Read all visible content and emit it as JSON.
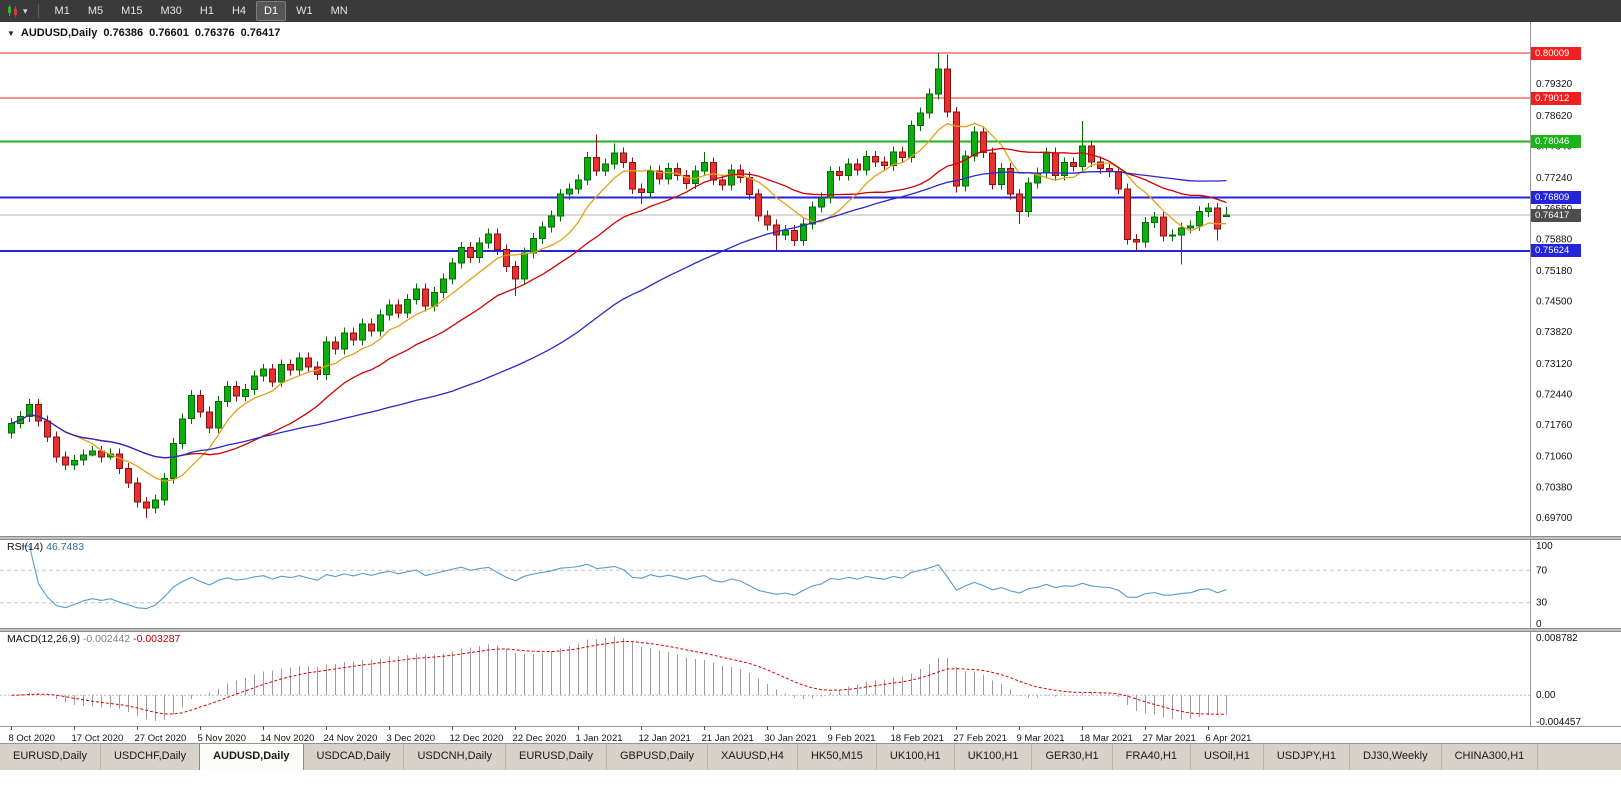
{
  "toolbar": {
    "timeframes": [
      "M1",
      "M5",
      "M15",
      "M30",
      "H1",
      "H4",
      "D1",
      "W1",
      "MN"
    ],
    "active_timeframe": "D1",
    "caret": "▾"
  },
  "chart": {
    "header": {
      "collapse_icon": "▼",
      "symbol": "AUDUSD,Daily",
      "open": "0.76386",
      "high": "0.76601",
      "low": "0.76376",
      "close": "0.76417"
    }
  },
  "chart_data": {
    "type": "candlestick",
    "symbol": "AUDUSD",
    "period": "Daily",
    "price_range": {
      "max": 0.807,
      "min": 0.693
    },
    "colors": {
      "up_fill": "#0fae10",
      "up_border": "#046b04",
      "down_fill": "#e63131",
      "down_border": "#8d0f0f",
      "rsi": "#559bd4",
      "macd_bar": "#9c9c9c",
      "macd_signal": "#e00000"
    },
    "candles": [
      [
        0.7158,
        0.7192,
        0.7146,
        0.718
      ],
      [
        0.718,
        0.7207,
        0.7168,
        0.7195
      ],
      [
        0.7195,
        0.7234,
        0.7183,
        0.7222
      ],
      [
        0.7222,
        0.7234,
        0.7173,
        0.7185
      ],
      [
        0.7185,
        0.7197,
        0.7138,
        0.715
      ],
      [
        0.715,
        0.7162,
        0.7093,
        0.7105
      ],
      [
        0.7105,
        0.7117,
        0.7076,
        0.7088
      ],
      [
        0.7088,
        0.711,
        0.7076,
        0.7098
      ],
      [
        0.7098,
        0.7122,
        0.7086,
        0.711
      ],
      [
        0.711,
        0.713,
        0.7106,
        0.7118
      ],
      [
        0.7118,
        0.713,
        0.7093,
        0.7105
      ],
      [
        0.7105,
        0.7124,
        0.71,
        0.7112
      ],
      [
        0.7112,
        0.7124,
        0.7068,
        0.708
      ],
      [
        0.708,
        0.7092,
        0.7036,
        0.7048
      ],
      [
        0.7048,
        0.706,
        0.6993,
        0.7005
      ],
      [
        0.7005,
        0.7017,
        0.697,
        0.6992
      ],
      [
        0.6992,
        0.7022,
        0.698,
        0.701
      ],
      [
        0.701,
        0.707,
        0.6998,
        0.7058
      ],
      [
        0.7058,
        0.7147,
        0.7046,
        0.7135
      ],
      [
        0.7135,
        0.7202,
        0.7123,
        0.719
      ],
      [
        0.719,
        0.7254,
        0.7178,
        0.7242
      ],
      [
        0.7242,
        0.7254,
        0.7193,
        0.7205
      ],
      [
        0.7205,
        0.7217,
        0.7158,
        0.717
      ],
      [
        0.717,
        0.724,
        0.7158,
        0.7228
      ],
      [
        0.7228,
        0.7274,
        0.7216,
        0.7262
      ],
      [
        0.7262,
        0.7274,
        0.7228,
        0.724
      ],
      [
        0.724,
        0.7267,
        0.7228,
        0.7255
      ],
      [
        0.7255,
        0.7297,
        0.7243,
        0.7285
      ],
      [
        0.7285,
        0.7312,
        0.7273,
        0.73
      ],
      [
        0.73,
        0.7312,
        0.726,
        0.7272
      ],
      [
        0.7272,
        0.7322,
        0.726,
        0.731
      ],
      [
        0.731,
        0.7322,
        0.7286,
        0.7298
      ],
      [
        0.7298,
        0.7337,
        0.7286,
        0.7325
      ],
      [
        0.7325,
        0.7337,
        0.7293,
        0.7305
      ],
      [
        0.7305,
        0.7317,
        0.7276,
        0.7288
      ],
      [
        0.7288,
        0.7372,
        0.7276,
        0.736
      ],
      [
        0.736,
        0.7372,
        0.7333,
        0.7345
      ],
      [
        0.7345,
        0.7392,
        0.7333,
        0.738
      ],
      [
        0.738,
        0.7392,
        0.7353,
        0.7365
      ],
      [
        0.7365,
        0.7412,
        0.7353,
        0.74
      ],
      [
        0.74,
        0.7412,
        0.7373,
        0.7385
      ],
      [
        0.7385,
        0.7432,
        0.7373,
        0.742
      ],
      [
        0.742,
        0.7454,
        0.7408,
        0.7442
      ],
      [
        0.7442,
        0.7454,
        0.7413,
        0.7425
      ],
      [
        0.7425,
        0.7467,
        0.7413,
        0.7455
      ],
      [
        0.7455,
        0.749,
        0.7443,
        0.7478
      ],
      [
        0.7478,
        0.749,
        0.7428,
        0.744
      ],
      [
        0.744,
        0.7482,
        0.7428,
        0.747
      ],
      [
        0.747,
        0.7512,
        0.7458,
        0.75
      ],
      [
        0.75,
        0.7547,
        0.7488,
        0.7535
      ],
      [
        0.7535,
        0.7582,
        0.7523,
        0.757
      ],
      [
        0.757,
        0.7582,
        0.7536,
        0.7548
      ],
      [
        0.7548,
        0.7592,
        0.7536,
        0.758
      ],
      [
        0.758,
        0.7612,
        0.7568,
        0.76
      ],
      [
        0.76,
        0.7612,
        0.7553,
        0.7565
      ],
      [
        0.7565,
        0.7577,
        0.7516,
        0.7528
      ],
      [
        0.7528,
        0.754,
        0.7462,
        0.75
      ],
      [
        0.75,
        0.757,
        0.7488,
        0.7558
      ],
      [
        0.7558,
        0.7602,
        0.7546,
        0.759
      ],
      [
        0.759,
        0.7627,
        0.7578,
        0.7615
      ],
      [
        0.7615,
        0.7652,
        0.7603,
        0.764
      ],
      [
        0.764,
        0.77,
        0.7628,
        0.7688
      ],
      [
        0.7688,
        0.7712,
        0.7676,
        0.77
      ],
      [
        0.77,
        0.7732,
        0.7688,
        0.772
      ],
      [
        0.772,
        0.7782,
        0.7708,
        0.777
      ],
      [
        0.777,
        0.782,
        0.7728,
        0.774
      ],
      [
        0.774,
        0.7767,
        0.7728,
        0.7755
      ],
      [
        0.7755,
        0.78,
        0.7743,
        0.778
      ],
      [
        0.778,
        0.7792,
        0.7746,
        0.7758
      ],
      [
        0.7758,
        0.777,
        0.7688,
        0.77
      ],
      [
        0.77,
        0.7712,
        0.7666,
        0.7692
      ],
      [
        0.7692,
        0.7752,
        0.768,
        0.774
      ],
      [
        0.774,
        0.7752,
        0.771,
        0.7722
      ],
      [
        0.7722,
        0.7757,
        0.771,
        0.7745
      ],
      [
        0.7745,
        0.7757,
        0.7718,
        0.773
      ],
      [
        0.773,
        0.7742,
        0.77,
        0.7712
      ],
      [
        0.7712,
        0.7752,
        0.77,
        0.774
      ],
      [
        0.774,
        0.7782,
        0.7728,
        0.7758
      ],
      [
        0.7758,
        0.777,
        0.7708,
        0.772
      ],
      [
        0.772,
        0.7732,
        0.7696,
        0.7708
      ],
      [
        0.7708,
        0.7754,
        0.7696,
        0.7742
      ],
      [
        0.7742,
        0.7754,
        0.7713,
        0.7725
      ],
      [
        0.7725,
        0.7737,
        0.7676,
        0.7688
      ],
      [
        0.7688,
        0.77,
        0.7628,
        0.764
      ],
      [
        0.764,
        0.7652,
        0.7608,
        0.762
      ],
      [
        0.762,
        0.7632,
        0.7564,
        0.7598
      ],
      [
        0.7598,
        0.762,
        0.7586,
        0.7608
      ],
      [
        0.7608,
        0.762,
        0.7573,
        0.7585
      ],
      [
        0.7585,
        0.7634,
        0.7573,
        0.7622
      ],
      [
        0.7622,
        0.7672,
        0.761,
        0.766
      ],
      [
        0.766,
        0.7692,
        0.7648,
        0.768
      ],
      [
        0.768,
        0.775,
        0.7668,
        0.7738
      ],
      [
        0.7738,
        0.775,
        0.7718,
        0.773
      ],
      [
        0.773,
        0.7767,
        0.7718,
        0.7755
      ],
      [
        0.7755,
        0.7767,
        0.773,
        0.7742
      ],
      [
        0.7742,
        0.7784,
        0.773,
        0.7772
      ],
      [
        0.7772,
        0.7784,
        0.7748,
        0.776
      ],
      [
        0.776,
        0.7772,
        0.774,
        0.7752
      ],
      [
        0.7752,
        0.7794,
        0.774,
        0.7782
      ],
      [
        0.7782,
        0.7794,
        0.7758,
        0.777
      ],
      [
        0.777,
        0.7852,
        0.7758,
        0.784
      ],
      [
        0.784,
        0.788,
        0.7828,
        0.7868
      ],
      [
        0.7868,
        0.7922,
        0.7856,
        0.791
      ],
      [
        0.791,
        0.8001,
        0.7898,
        0.7966
      ],
      [
        0.7966,
        0.7998,
        0.7858,
        0.787
      ],
      [
        0.787,
        0.7882,
        0.7692,
        0.7706
      ],
      [
        0.7706,
        0.7785,
        0.7694,
        0.7773
      ],
      [
        0.7773,
        0.7838,
        0.7761,
        0.7826
      ],
      [
        0.7826,
        0.7838,
        0.7768,
        0.778
      ],
      [
        0.778,
        0.7792,
        0.7698,
        0.771
      ],
      [
        0.771,
        0.7757,
        0.7698,
        0.7745
      ],
      [
        0.7745,
        0.7757,
        0.7676,
        0.7688
      ],
      [
        0.7688,
        0.77,
        0.7622,
        0.765
      ],
      [
        0.765,
        0.7725,
        0.7638,
        0.7713
      ],
      [
        0.7713,
        0.7747,
        0.7701,
        0.7735
      ],
      [
        0.7735,
        0.7792,
        0.7723,
        0.778
      ],
      [
        0.778,
        0.7792,
        0.7718,
        0.773
      ],
      [
        0.773,
        0.777,
        0.7718,
        0.7758
      ],
      [
        0.7758,
        0.777,
        0.7738,
        0.775
      ],
      [
        0.775,
        0.785,
        0.7738,
        0.7795
      ],
      [
        0.7795,
        0.7807,
        0.7748,
        0.776
      ],
      [
        0.776,
        0.7772,
        0.7733,
        0.7745
      ],
      [
        0.7745,
        0.7757,
        0.7726,
        0.7738
      ],
      [
        0.7738,
        0.775,
        0.7688,
        0.77
      ],
      [
        0.77,
        0.7712,
        0.7576,
        0.7588
      ],
      [
        0.7588,
        0.76,
        0.7562,
        0.7582
      ],
      [
        0.7582,
        0.7637,
        0.757,
        0.7625
      ],
      [
        0.7625,
        0.7649,
        0.7613,
        0.7637
      ],
      [
        0.7637,
        0.7649,
        0.7583,
        0.7595
      ],
      [
        0.7595,
        0.761,
        0.7583,
        0.7598
      ],
      [
        0.7598,
        0.7625,
        0.7532,
        0.7613
      ],
      [
        0.7613,
        0.763,
        0.7601,
        0.7618
      ],
      [
        0.7618,
        0.7662,
        0.7606,
        0.765
      ],
      [
        0.765,
        0.7669,
        0.7638,
        0.7657
      ],
      [
        0.7657,
        0.7669,
        0.7585,
        0.7611
      ],
      [
        0.76386,
        0.76601,
        0.76376,
        0.76417
      ]
    ],
    "moving_averages": [
      {
        "period": 8,
        "color": "#e2a117"
      },
      {
        "period": 20,
        "color": "#d40000"
      },
      {
        "period": 50,
        "color": "#2929cc"
      }
    ],
    "levels": [
      {
        "value": 0.80009,
        "label": "0.80009",
        "color": "#f02020",
        "width": 1
      },
      {
        "value": 0.79012,
        "label": "0.79012",
        "color": "#f02020",
        "width": 1
      },
      {
        "value": 0.78046,
        "label": "0.78046",
        "color": "#1db31d",
        "width": 2
      },
      {
        "value": 0.76809,
        "label": "0.76809",
        "color": "#2424d8",
        "width": 2
      },
      {
        "value": 0.75624,
        "label": "0.75624",
        "color": "#2424d8",
        "width": 2
      }
    ],
    "current_price": {
      "value": 0.76417,
      "label": "0.76417",
      "color": "#4d4d4d"
    },
    "price_axis": [
      "0.79320",
      "0.78620",
      "0.77940",
      "0.77240",
      "0.76550",
      "0.75880",
      "0.75180",
      "0.74500",
      "0.73820",
      "0.73120",
      "0.72440",
      "0.71760",
      "0.71060",
      "0.70380",
      "0.69700"
    ],
    "date_axis": [
      "8 Oct 2020",
      "17 Oct 2020",
      "27 Oct 2020",
      "5 Nov 2020",
      "14 Nov 2020",
      "24 Nov 2020",
      "3 Dec 2020",
      "12 Dec 2020",
      "22 Dec 2020",
      "1 Jan 2021",
      "12 Jan 2021",
      "21 Jan 2021",
      "30 Jan 2021",
      "9 Feb 2021",
      "18 Feb 2021",
      "27 Feb 2021",
      "9 Mar 2021",
      "18 Mar 2021",
      "27 Mar 2021",
      "6 Apr 2021"
    ],
    "rsi": {
      "label": "RSI(14)",
      "value": "46.7483",
      "period": 14,
      "scale": [
        100,
        70,
        30,
        0
      ],
      "guide_levels": [
        70,
        30
      ]
    },
    "macd": {
      "label": "MACD(12,26,9)",
      "value_main": "-0.002442",
      "value_signal": "-0.003287",
      "fast": 12,
      "slow": 26,
      "signal": 9,
      "axis_max": "0.008782",
      "axis_zero": "0.00",
      "axis_min": "-0.004457"
    }
  },
  "tabs": {
    "items": [
      "EURUSD,Daily",
      "USDCHF,Daily",
      "AUDUSD,Daily",
      "USDCAD,Daily",
      "USDCNH,Daily",
      "EURUSD,Daily",
      "GBPUSD,Daily",
      "XAUUSD,H4",
      "HK50,M15",
      "UK100,H1",
      "UK100,H1",
      "GER30,H1",
      "FRA40,H1",
      "USOil,H1",
      "USDJPY,H1",
      "DJ30,Weekly",
      "CHINA300,H1"
    ],
    "active_index": 2
  }
}
